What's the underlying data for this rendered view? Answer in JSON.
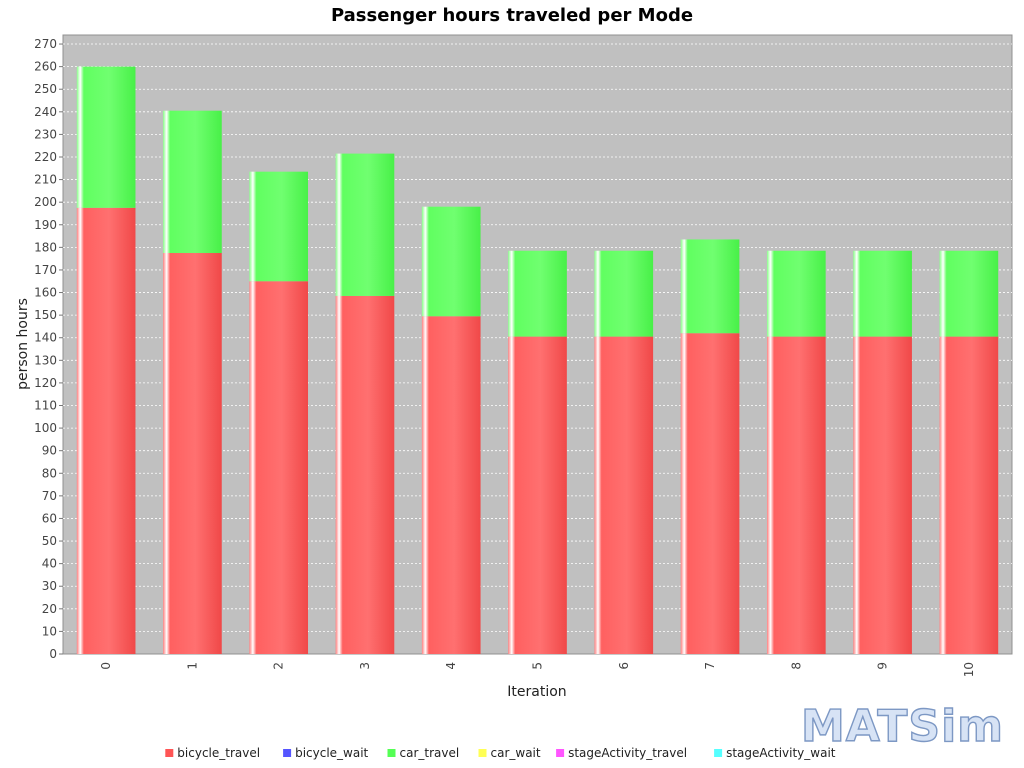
{
  "chart_data": {
    "type": "bar",
    "stacked": true,
    "title": "Passenger hours traveled per Mode",
    "xlabel": "Iteration",
    "ylabel": "person hours",
    "ylim": [
      0,
      274
    ],
    "yticks": [
      0,
      10,
      20,
      30,
      40,
      50,
      60,
      70,
      80,
      90,
      100,
      110,
      120,
      130,
      140,
      150,
      160,
      170,
      180,
      190,
      200,
      210,
      220,
      230,
      240,
      250,
      260,
      270
    ],
    "categories": [
      "0",
      "1",
      "2",
      "3",
      "4",
      "5",
      "6",
      "7",
      "8",
      "9",
      "10"
    ],
    "grid": true,
    "legend_position": "bottom",
    "series": [
      {
        "name": "bicycle_travel",
        "color": "#ff5555",
        "values": [
          197.5,
          177.5,
          165,
          158.5,
          149.5,
          140.5,
          140.5,
          142,
          140.5,
          140.5,
          140.5
        ]
      },
      {
        "name": "bicycle_wait",
        "color": "#5555ff",
        "values": [
          0,
          0,
          0,
          0,
          0,
          0,
          0,
          0,
          0,
          0,
          0
        ]
      },
      {
        "name": "car_travel",
        "color": "#55ff55",
        "values": [
          62.5,
          63,
          48.5,
          63,
          48.5,
          38,
          38,
          41.5,
          38,
          38,
          38
        ]
      },
      {
        "name": "car_wait",
        "color": "#ffff55",
        "values": [
          0,
          0,
          0,
          0,
          0,
          0,
          0,
          0,
          0,
          0,
          0
        ]
      },
      {
        "name": "stageActivity_travel",
        "color": "#ff55ff",
        "values": [
          0,
          0,
          0,
          0,
          0,
          0,
          0,
          0,
          0,
          0,
          0
        ]
      },
      {
        "name": "stageActivity_wait",
        "color": "#55ffff",
        "values": [
          0,
          0,
          0,
          0,
          0,
          0,
          0,
          0,
          0,
          0,
          0
        ]
      }
    ]
  },
  "logo": {
    "text": "MATSim"
  },
  "colors": {
    "plot_background": "#c0c0c0",
    "gridline": "#ffffff"
  }
}
